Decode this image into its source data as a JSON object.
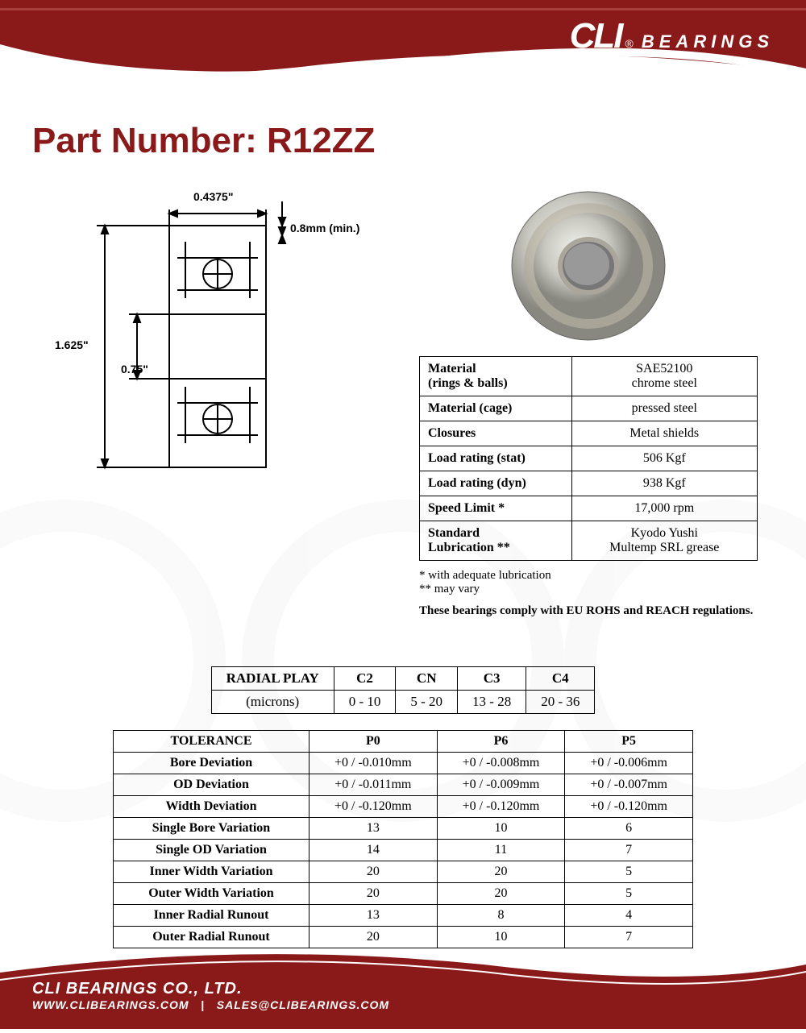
{
  "brand": {
    "logo_text": "CLI",
    "registered": "®",
    "suffix": "BEARINGS",
    "color": "#ffffff"
  },
  "header_swoosh_color": "#8a1a1a",
  "part": {
    "label": "Part Number:",
    "number": "R12ZZ",
    "title_color": "#8a1a1a"
  },
  "diagram": {
    "width_label": "0.4375\"",
    "outer_diameter": "1.625\"",
    "inner_diameter": "0.75\"",
    "chamfer": "0.8mm (min.)",
    "line_color": "#000000",
    "stroke_width": 2
  },
  "photo": {
    "description": "bearing-photo"
  },
  "spec_table": {
    "rows": [
      {
        "label": "Material\n(rings & balls)",
        "value": "SAE52100\nchrome steel"
      },
      {
        "label": "Material (cage)",
        "value": "pressed steel"
      },
      {
        "label": "Closures",
        "value": "Metal shields"
      },
      {
        "label": "Load rating (stat)",
        "value": "506 Kgf"
      },
      {
        "label": "Load rating (dyn)",
        "value": "938 Kgf"
      },
      {
        "label": "Speed Limit *",
        "value": "17,000 rpm"
      },
      {
        "label": "Standard\nLubrication  **",
        "value": "Kyodo Yushi\nMultemp SRL grease"
      }
    ]
  },
  "footnotes": {
    "l1": "  * with adequate lubrication",
    "l2": "** may vary",
    "compliance": "These bearings comply with EU ROHS and REACH  regulations."
  },
  "radial_play": {
    "header": "RADIAL PLAY",
    "unit": "(microns)",
    "columns": [
      "C2",
      "CN",
      "C3",
      "C4"
    ],
    "values": [
      "0 - 10",
      "5 - 20",
      "13 - 28",
      "20 - 36"
    ]
  },
  "tolerance": {
    "header": "TOLERANCE",
    "columns": [
      "P0",
      "P6",
      "P5"
    ],
    "rows": [
      {
        "label": "Bore Deviation",
        "v": [
          "+0 / -0.010mm",
          "+0 / -0.008mm",
          "+0 / -0.006mm"
        ]
      },
      {
        "label": "OD Deviation",
        "v": [
          "+0 / -0.011mm",
          "+0 / -0.009mm",
          "+0 / -0.007mm"
        ]
      },
      {
        "label": "Width Deviation",
        "v": [
          "+0 / -0.120mm",
          "+0 / -0.120mm",
          "+0 / -0.120mm"
        ]
      },
      {
        "label": "Single Bore Variation",
        "v": [
          "13",
          "10",
          "6"
        ]
      },
      {
        "label": "Single OD Variation",
        "v": [
          "14",
          "11",
          "7"
        ]
      },
      {
        "label": "Inner Width Variation",
        "v": [
          "20",
          "20",
          "5"
        ]
      },
      {
        "label": "Outer Width Variation",
        "v": [
          "20",
          "20",
          "5"
        ]
      },
      {
        "label": "Inner Radial Runout",
        "v": [
          "13",
          "8",
          "4"
        ]
      },
      {
        "label": "Outer Radial Runout",
        "v": [
          "20",
          "10",
          "7"
        ]
      }
    ]
  },
  "footer": {
    "company": "CLI BEARINGS CO., LTD.",
    "website": "WWW.CLIBEARINGS.COM",
    "sep": "|",
    "email": "SALES@CLIBEARINGS.COM",
    "swoosh_color": "#8a1a1a"
  }
}
